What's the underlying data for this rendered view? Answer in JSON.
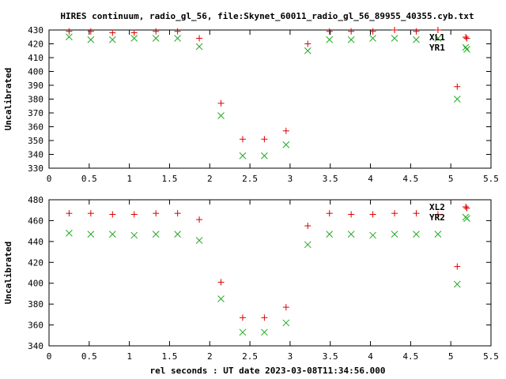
{
  "title": "HIRES continuum, radio_gl_56, file:Skynet_60011_radio_gl_56_89955_40355.cyb.txt",
  "colors": {
    "xl": "#dd0000",
    "yr": "#22aa22",
    "frame": "#000000"
  },
  "chart_data": [
    {
      "type": "scatter",
      "ylabel": "Uncalibrated",
      "xlabel": "",
      "xlim": [
        0,
        5.5
      ],
      "ylim": [
        330,
        430
      ],
      "xticks": [
        "0",
        "0.5",
        "1",
        "1.5",
        "2",
        "2.5",
        "3",
        "3.5",
        "4",
        "4.5",
        "5",
        "5.5"
      ],
      "yticks": [
        "330",
        "340",
        "350",
        "360",
        "370",
        "380",
        "390",
        "400",
        "410",
        "420",
        "430"
      ],
      "legend_position": "top-right",
      "series": [
        {
          "name": "XL1",
          "marker": "plus",
          "x": [
            0.25,
            0.52,
            0.79,
            1.06,
            1.33,
            1.6,
            1.87,
            2.14,
            2.41,
            2.68,
            2.95,
            3.22,
            3.49,
            3.76,
            4.03,
            4.3,
            4.57,
            4.84,
            5.08,
            5.2
          ],
          "y": [
            429,
            429,
            428,
            428,
            429,
            429,
            424,
            377,
            351,
            351,
            357,
            420,
            429,
            429,
            429,
            430,
            429,
            430,
            389,
            424
          ]
        },
        {
          "name": "YR1",
          "marker": "cross",
          "x": [
            0.25,
            0.52,
            0.79,
            1.06,
            1.33,
            1.6,
            1.87,
            2.14,
            2.41,
            2.68,
            2.95,
            3.22,
            3.49,
            3.76,
            4.03,
            4.3,
            4.57,
            4.84,
            5.08,
            5.2
          ],
          "y": [
            425,
            423,
            423,
            424,
            424,
            424,
            418,
            368,
            339,
            339,
            347,
            415,
            423,
            423,
            424,
            424,
            423,
            424,
            380,
            416
          ]
        }
      ]
    },
    {
      "type": "scatter",
      "ylabel": "Uncalibrated",
      "xlabel": "rel seconds : UT date 2023-03-08T11:34:56.000",
      "xlim": [
        0,
        5.5
      ],
      "ylim": [
        340,
        480
      ],
      "xticks": [
        "0",
        "0.5",
        "1",
        "1.5",
        "2",
        "2.5",
        "3",
        "3.5",
        "4",
        "4.5",
        "5",
        "5.5"
      ],
      "yticks": [
        "340",
        "360",
        "380",
        "400",
        "420",
        "440",
        "460",
        "480"
      ],
      "legend_position": "top-right",
      "series": [
        {
          "name": "XL2",
          "marker": "plus",
          "x": [
            0.25,
            0.52,
            0.79,
            1.06,
            1.33,
            1.6,
            1.87,
            2.14,
            2.41,
            2.68,
            2.95,
            3.22,
            3.49,
            3.76,
            4.03,
            4.3,
            4.57,
            4.84,
            5.08,
            5.2
          ],
          "y": [
            467,
            467,
            466,
            466,
            467,
            467,
            461,
            401,
            367,
            367,
            377,
            455,
            467,
            466,
            466,
            467,
            467,
            466,
            416,
            472
          ]
        },
        {
          "name": "YR2",
          "marker": "cross",
          "x": [
            0.25,
            0.52,
            0.79,
            1.06,
            1.33,
            1.6,
            1.87,
            2.14,
            2.41,
            2.68,
            2.95,
            3.22,
            3.49,
            3.76,
            4.03,
            4.3,
            4.57,
            4.84,
            5.08,
            5.2
          ],
          "y": [
            448,
            447,
            447,
            446,
            447,
            447,
            441,
            385,
            353,
            353,
            362,
            437,
            447,
            447,
            446,
            447,
            447,
            447,
            399,
            462
          ]
        }
      ]
    }
  ]
}
